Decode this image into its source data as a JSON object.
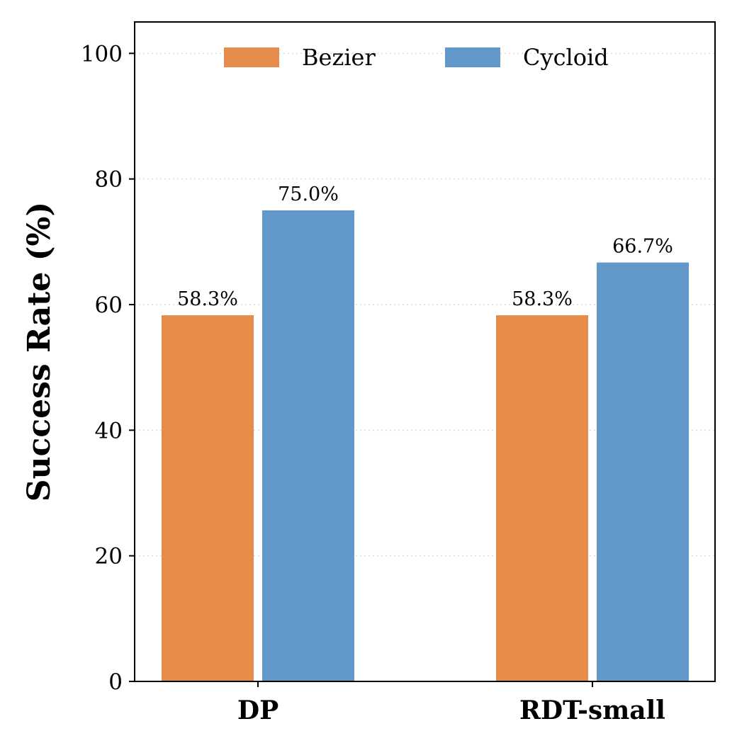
{
  "chart_data": {
    "type": "bar",
    "categories": [
      "DP",
      "RDT-small"
    ],
    "series": [
      {
        "name": "Bezier",
        "values": [
          58.3,
          58.3
        ],
        "labels": [
          "58.3%",
          "58.3%"
        ],
        "color": "#E68C4A"
      },
      {
        "name": "Cycloid",
        "values": [
          75.0,
          66.7
        ],
        "labels": [
          "75.0%",
          "66.7%"
        ],
        "color": "#6399CA"
      }
    ],
    "ylabel": "Success Rate (%)",
    "xlabel": "",
    "ylim": [
      0,
      105
    ],
    "yticks": [
      0,
      20,
      40,
      60,
      80,
      100
    ],
    "grid": "y-dotted",
    "legend_position": "top-center"
  }
}
